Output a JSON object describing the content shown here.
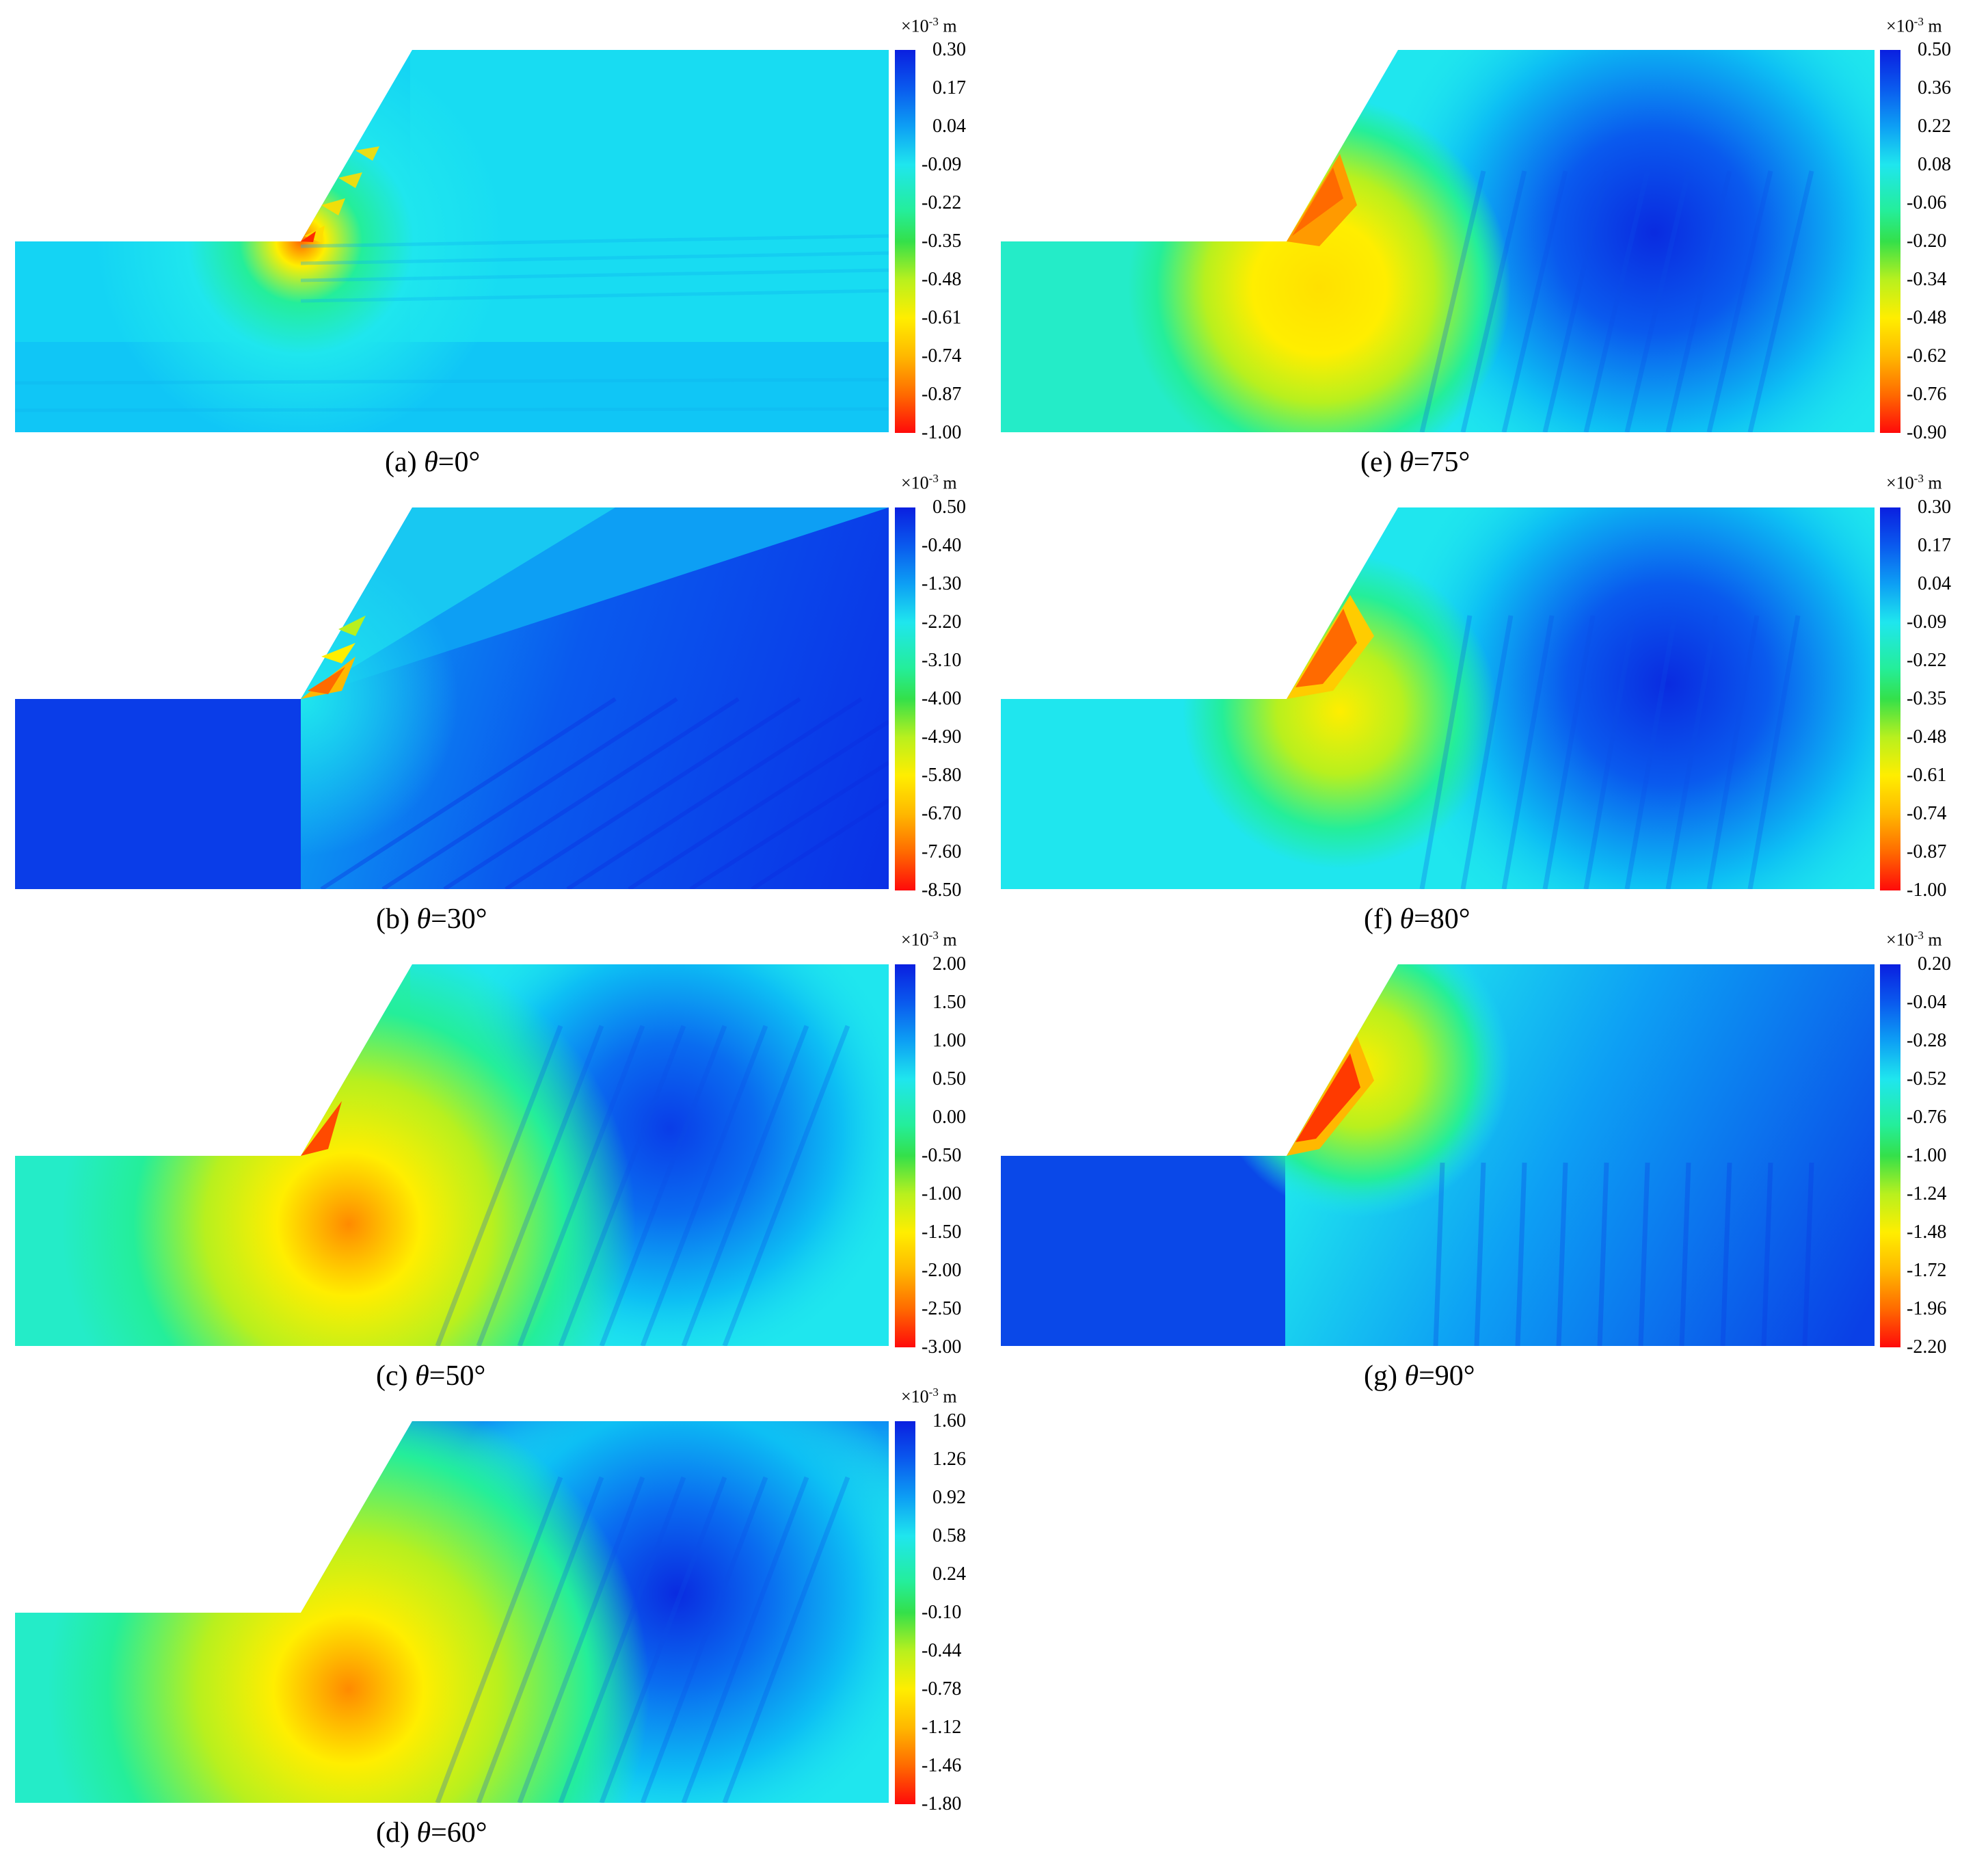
{
  "figure": {
    "panels": [
      {
        "id": "a",
        "caption_prefix": "(a) ",
        "theta_symbol": "θ",
        "caption_value": "=0°",
        "unit_base": "×10",
        "unit_exp": "-3",
        "unit_suffix": " m",
        "ticks": [
          "0.30",
          "0.17",
          "0.04",
          "-0.09",
          "-0.22",
          "-0.35",
          "-0.48",
          "-0.61",
          "-0.74",
          "-0.87",
          "-1.00"
        ]
      },
      {
        "id": "b",
        "caption_prefix": "(b) ",
        "theta_symbol": "θ",
        "caption_value": "=30°",
        "unit_base": "×10",
        "unit_exp": "-3",
        "unit_suffix": " m",
        "ticks": [
          "0.50",
          "-0.40",
          "-1.30",
          "-2.20",
          "-3.10",
          "-4.00",
          "-4.90",
          "-5.80",
          "-6.70",
          "-7.60",
          "-8.50"
        ]
      },
      {
        "id": "c",
        "caption_prefix": "(c) ",
        "theta_symbol": "θ",
        "caption_value": "=50°",
        "unit_base": "×10",
        "unit_exp": "-3",
        "unit_suffix": " m",
        "ticks": [
          "2.00",
          "1.50",
          "1.00",
          "0.50",
          "0.00",
          "-0.50",
          "-1.00",
          "-1.50",
          "-2.00",
          "-2.50",
          "-3.00"
        ]
      },
      {
        "id": "d",
        "caption_prefix": "(d) ",
        "theta_symbol": "θ",
        "caption_value": "=60°",
        "unit_base": "×10",
        "unit_exp": "-3",
        "unit_suffix": " m",
        "ticks": [
          "1.60",
          "1.26",
          "0.92",
          "0.58",
          "0.24",
          "-0.10",
          "-0.44",
          "-0.78",
          "-1.12",
          "-1.46",
          "-1.80"
        ]
      },
      {
        "id": "e",
        "caption_prefix": "(e) ",
        "theta_symbol": "θ",
        "caption_value": "=75°",
        "unit_base": "×10",
        "unit_exp": "-3",
        "unit_suffix": " m",
        "ticks": [
          "0.50",
          "0.36",
          "0.22",
          "0.08",
          "-0.06",
          "-0.20",
          "-0.34",
          "-0.48",
          "-0.62",
          "-0.76",
          "-0.90"
        ]
      },
      {
        "id": "f",
        "caption_prefix": "(f) ",
        "theta_symbol": "θ",
        "caption_value": "=80°",
        "unit_base": "×10",
        "unit_exp": "-3",
        "unit_suffix": " m",
        "ticks": [
          "0.30",
          "0.17",
          "0.04",
          "-0.09",
          "-0.22",
          "-0.35",
          "-0.48",
          "-0.61",
          "-0.74",
          "-0.87",
          "-1.00"
        ]
      },
      {
        "id": "g",
        "caption_prefix": "(g) ",
        "theta_symbol": "θ",
        "caption_value": "=90°",
        "unit_base": "×10",
        "unit_exp": "-3",
        "unit_suffix": " m",
        "ticks": [
          "0.20",
          "-0.04",
          "-0.28",
          "-0.52",
          "-0.76",
          "-1.00",
          "-1.24",
          "-1.48",
          "-1.72",
          "-1.96",
          "-2.20"
        ]
      }
    ],
    "colormap": [
      "#0a1fe0",
      "#0a5aee",
      "#0d9ff4",
      "#1fe6ee",
      "#24ee9a",
      "#34e04a",
      "#b8f01e",
      "#ffee00",
      "#ffb800",
      "#ff6a00",
      "#ff0a0a"
    ]
  }
}
